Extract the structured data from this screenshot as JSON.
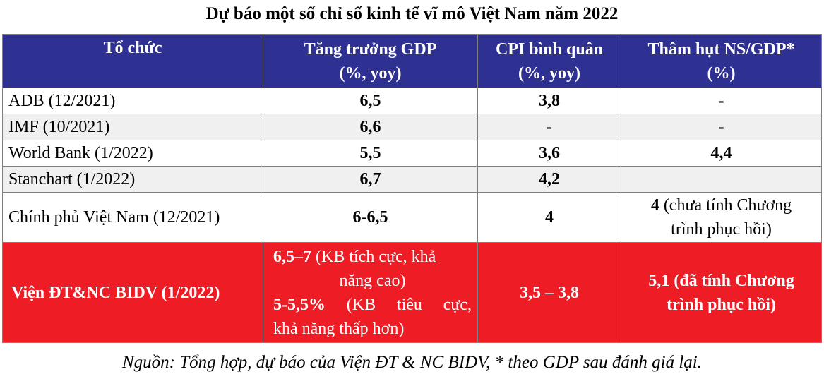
{
  "title": "Dự báo một số chỉ số kinh tế vĩ mô Việt Nam năm 2022",
  "headers": {
    "org": "Tổ chức",
    "gdp_line1": "Tăng trưởng GDP",
    "gdp_line2": "(%, yoy)",
    "cpi_line1": "CPI bình quân",
    "cpi_line2": "(%, yoy)",
    "deficit_line1": "Thâm hụt NS/GDP*",
    "deficit_line2": "(%)"
  },
  "rows": [
    {
      "org": "ADB (12/2021)",
      "gdp": "6,5",
      "cpi": "3,8",
      "deficit": "-"
    },
    {
      "org": "IMF (10/2021)",
      "gdp": "6,6",
      "cpi": "-",
      "deficit": "-"
    },
    {
      "org": "World Bank (1/2022)",
      "gdp": "5,5",
      "cpi": "3,6",
      "deficit": "4,4"
    },
    {
      "org": "Stanchart (1/2022)",
      "gdp": "6,7",
      "cpi": "4,2",
      "deficit": ""
    },
    {
      "org": "Chính phủ Việt Nam (12/2021)",
      "gdp": "6-6,5",
      "cpi": "4",
      "deficit_value": "4",
      "deficit_note_1": " (chưa tính Chương",
      "deficit_note_2": "trình phục hồi)"
    }
  ],
  "highlight_row": {
    "org": "Viện ĐT&NC BIDV (1/2022)",
    "gdp_positive_value": "6,5–7",
    "gdp_positive_note_1": " (KB tích cực, khả",
    "gdp_positive_note_2": "năng cao)",
    "gdp_negative_value": "5-5,5%",
    "gdp_negative_note_w1": "(KB",
    "gdp_negative_note_w2": "tiêu",
    "gdp_negative_note_w3": "cực,",
    "gdp_negative_note_2": "khả năng thấp hơn)",
    "cpi": "3,5 – 3,8",
    "deficit_line1": "5,1 (đã tính Chương",
    "deficit_line2": "trình phục hồi)"
  },
  "source": "Nguồn: Tổng hợp, dự báo của Viện ĐT & NC BIDV, * theo GDP sau đánh giá lại.",
  "colors": {
    "header_bg": "#2e3192",
    "highlight_bg": "#ee1c25",
    "alt_row_bg": "#f0f0f0"
  }
}
